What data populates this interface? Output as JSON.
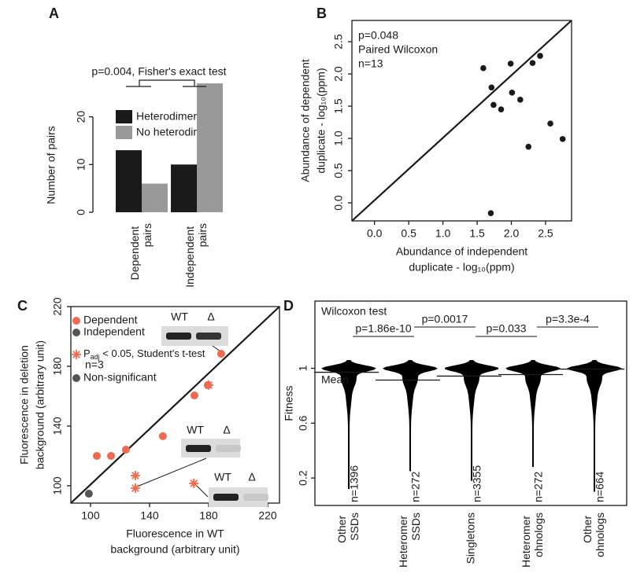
{
  "chart_data": [
    {
      "type": "bar",
      "panel": "A",
      "ylabel": "Number of pairs",
      "categories": [
        "Dependent pairs",
        "Independent pairs"
      ],
      "series": [
        {
          "name": "Heterodimer",
          "color": "#1a1a1a",
          "values": [
            13,
            10
          ]
        },
        {
          "name": "No heterodimer",
          "color": "#999999",
          "values": [
            6,
            27
          ]
        }
      ],
      "ylim": [
        0,
        28
      ],
      "yticks": [
        0,
        10,
        20
      ],
      "annotation": "p=0.004, Fisher's exact test"
    },
    {
      "type": "scatter",
      "panel": "B",
      "xlabel": [
        "Abundance of independent",
        "duplicate - log₁₀(ppm)"
      ],
      "ylabel": [
        "Abundance of dependent",
        "duplicate - log₁₀(ppm)"
      ],
      "annotations": [
        "p=0.048",
        "Paired Wilcoxon",
        "n=13"
      ],
      "color": "#1a1a1a",
      "x": [
        1.59,
        1.99,
        2.42,
        2.31,
        1.71,
        2.01,
        2.13,
        1.74,
        1.85,
        2.57,
        2.75,
        2.25,
        1.7
      ],
      "values": [
        2.09,
        2.16,
        2.28,
        2.17,
        1.79,
        1.71,
        1.6,
        1.52,
        1.45,
        1.23,
        0.99,
        0.87,
        -0.16
      ],
      "xlim": [
        -0.33,
        2.88
      ],
      "ylim": [
        -0.28,
        2.83
      ],
      "xticks": [
        {
          "value": 0,
          "label": "0.0"
        },
        0.5,
        {
          "value": 1,
          "label": "1.0"
        },
        1.5,
        {
          "value": 2,
          "label": "2.0"
        },
        2.5
      ],
      "yticks": [
        {
          "value": 0,
          "label": "0.0"
        },
        0.5,
        {
          "value": 1,
          "label": "1.0"
        },
        1.5,
        {
          "value": 2,
          "label": "2.0"
        },
        2.5
      ]
    },
    {
      "type": "scatter",
      "panel": "C",
      "xlabel": [
        "Fluorescence in WT",
        "background (arbitrary unit)"
      ],
      "ylabel": [
        "Fluorescence in deletion",
        "background (arbitrary unit)"
      ],
      "series": [
        {
          "name": "Dependent",
          "color": "#ee6a50",
          "marker": "circle",
          "x": [
            104.3,
            113.9,
            124,
            149,
            170.4,
            179.5,
            188.5
          ],
          "values": [
            120,
            120,
            124.2,
            133.2,
            160.5,
            167.4,
            188.4
          ]
        },
        {
          "name": "Dependent",
          "color": "#ee6a50",
          "marker": "star",
          "x": [
            130.4,
            130.4,
            180,
            170
          ],
          "values": [
            106.8,
            98.4,
            167.4,
            101.6
          ]
        },
        {
          "name": "Independent",
          "color": "#555555",
          "marker": "circle",
          "x": [
            98.9
          ],
          "values": [
            94.7
          ]
        }
      ],
      "legend": [
        {
          "label": "Dependent",
          "color": "#ee6a50",
          "marker": "circle"
        },
        {
          "label": "Independent",
          "color": "#555555",
          "marker": "circle"
        },
        {
          "label": [
            "P",
            "adj",
            " < 0.05, Student's t-test"
          ],
          "note": "n=3",
          "color": "#ee6a50",
          "marker": "star"
        },
        {
          "label": "Non-significant",
          "color": "#555555",
          "marker": "circle"
        }
      ],
      "inset_labels": [
        "WT",
        "Δ"
      ],
      "xlim": [
        86.7,
        228
      ],
      "ylim": [
        88.4,
        220
      ],
      "xticks": [
        100,
        140,
        180,
        220
      ],
      "yticks": [
        100,
        140,
        180,
        220
      ]
    },
    {
      "type": "violin",
      "panel": "D",
      "ylabel": "Fitness",
      "categories": [
        "Other SSDs",
        "Heteromer SSDs",
        "Singletons",
        "Heteromer ohnologs",
        "Other ohnologs"
      ],
      "n_labels": [
        "n=1396",
        "n=272",
        "n=3355",
        "n=272",
        "n=664"
      ],
      "values": [
        0.971,
        0.914,
        0.943,
        0.954,
        0.994
      ],
      "mins": [
        0.12,
        0.25,
        0.18,
        0.28,
        0.1
      ],
      "mean_label": "Mean",
      "test_label": "Wilcoxon test",
      "comparisons": [
        "p=1.86e-10",
        "p=0.0017",
        "p=0.033",
        "p=3.3e-4"
      ],
      "color": "#000000",
      "ylim": [
        0,
        1.49
      ],
      "yticks": [
        0.2,
        0.6,
        1
      ]
    }
  ]
}
